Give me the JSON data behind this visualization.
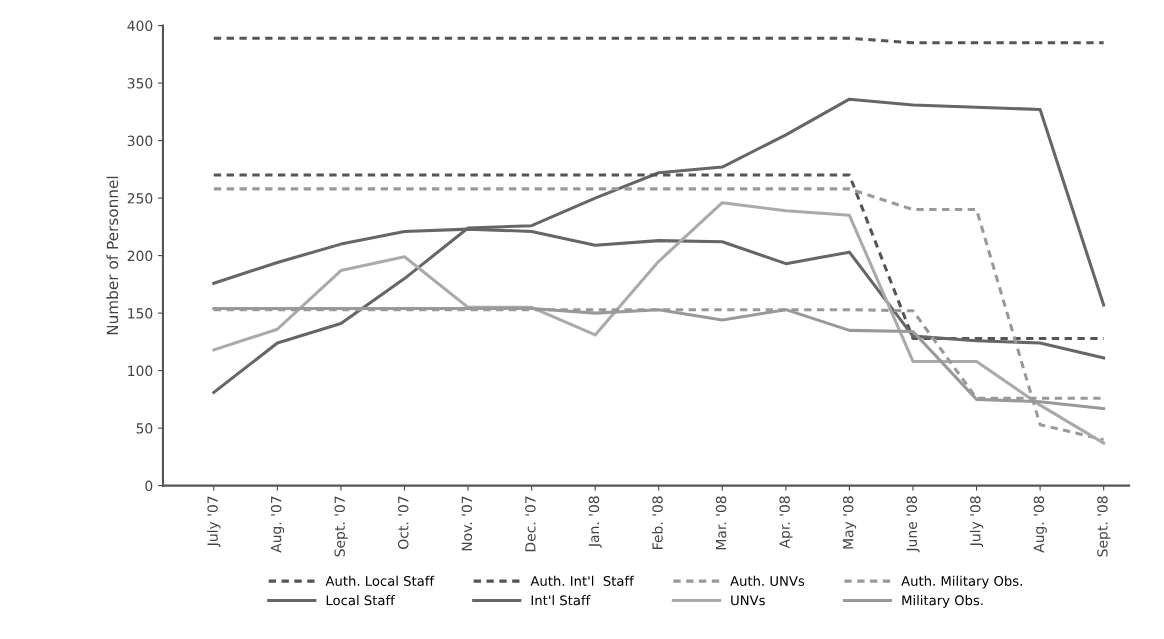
{
  "chart_data": {
    "type": "line",
    "ylabel": "Number of Personnel",
    "categories": [
      "July '07",
      "Aug. '07",
      "Sept. '07",
      "Oct. '07",
      "Nov. '07",
      "Dec. '07",
      "Jan. '08",
      "Feb. '08",
      "Mar. '08",
      "Apr. '08",
      "May '08",
      "June '08",
      "July '08",
      "Aug. '08",
      "Sept. '08"
    ],
    "ylim": [
      0,
      400
    ],
    "yticks": [
      0,
      50,
      100,
      150,
      200,
      250,
      300,
      350,
      400
    ],
    "grid": false,
    "legend": "bottom",
    "marker": "none",
    "series": [
      {
        "name": "Auth. Local Staff",
        "color": "#555555",
        "line_style": "dashed",
        "values": [
          389,
          389,
          389,
          389,
          389,
          389,
          389,
          389,
          389,
          389,
          389,
          385,
          385,
          385,
          385
        ]
      },
      {
        "name": "Local Staff",
        "color": "#666666",
        "line_style": "solid",
        "values": [
          81,
          124,
          141,
          180,
          224,
          226,
          250,
          272,
          277,
          305,
          336,
          331,
          329,
          327,
          157
        ]
      },
      {
        "name": "Auth. Int'l  Staff",
        "color": "#555555",
        "line_style": "dashed",
        "values": [
          270,
          270,
          270,
          270,
          270,
          270,
          270,
          270,
          270,
          270,
          270,
          128,
          128,
          128,
          128
        ]
      },
      {
        "name": "Int'l Staff",
        "color": "#666666",
        "line_style": "solid",
        "values": [
          176,
          194,
          210,
          221,
          223,
          221,
          209,
          213,
          212,
          193,
          203,
          130,
          126,
          124,
          111
        ]
      },
      {
        "name": "Auth. UNVs",
        "color": "#999999",
        "line_style": "dashed",
        "values": [
          258,
          258,
          258,
          258,
          258,
          258,
          258,
          258,
          258,
          258,
          258,
          240,
          240,
          53,
          40
        ]
      },
      {
        "name": "UNVs",
        "color": "#aaaaaa",
        "line_style": "solid",
        "values": [
          118,
          136,
          187,
          199,
          155,
          155,
          131,
          195,
          246,
          239,
          235,
          108,
          108,
          70,
          37
        ]
      },
      {
        "name": "Auth. Military Obs.",
        "color": "#999999",
        "line_style": "dashed",
        "values": [
          153,
          153,
          153,
          153,
          153,
          153,
          153,
          153,
          153,
          153,
          153,
          152,
          76,
          76,
          76
        ]
      },
      {
        "name": "Military Obs.",
        "color": "#999999",
        "line_style": "solid",
        "values": [
          154,
          154,
          154,
          154,
          154,
          154,
          150,
          153,
          144,
          153,
          135,
          134,
          75,
          73,
          67
        ]
      }
    ]
  }
}
